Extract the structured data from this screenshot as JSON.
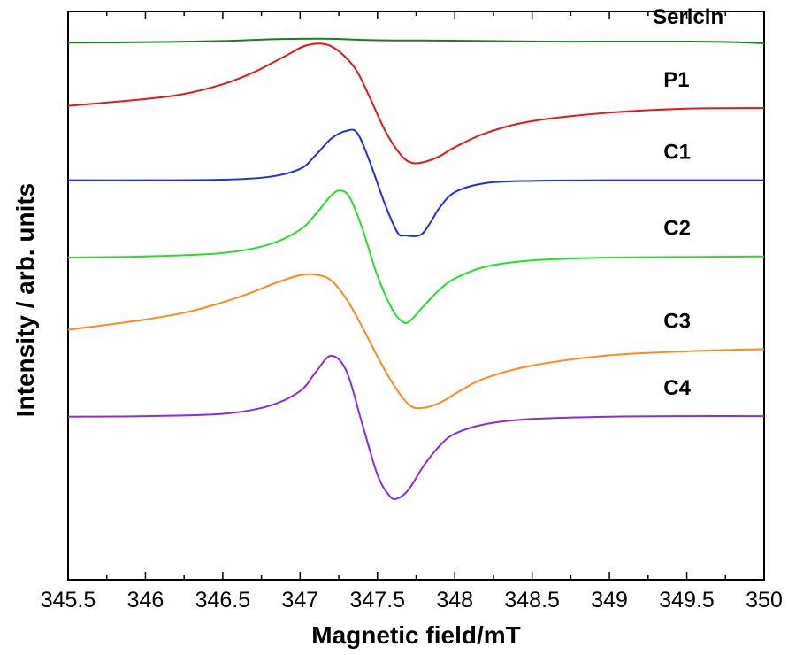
{
  "chart_data": {
    "type": "line",
    "title": "",
    "xlabel": "Magnetic field/mT",
    "ylabel": "Intensity / arb. units",
    "xlim": [
      345.5,
      350
    ],
    "ylim": [
      0,
      1
    ],
    "grid": false,
    "legend": "inline labels at right",
    "y_ticks_labeled": false,
    "x_ticks": [
      {
        "value": 345.5,
        "label": "345.5"
      },
      {
        "value": 346,
        "label": "346"
      },
      {
        "value": 346.5,
        "label": "346.5"
      },
      {
        "value": 347,
        "label": "347"
      },
      {
        "value": 347.5,
        "label": "347.5"
      },
      {
        "value": 348,
        "label": "348"
      },
      {
        "value": 348.5,
        "label": "348.5"
      },
      {
        "value": 349,
        "label": "349"
      },
      {
        "value": 349.5,
        "label": "349.5"
      },
      {
        "value": 350,
        "label": "350"
      }
    ],
    "series": [
      {
        "name": "Sericin",
        "color": "#1a7f1a",
        "x": [
          345.5,
          346.0,
          346.5,
          346.8,
          347.0,
          347.2,
          347.4,
          347.6,
          347.8,
          348.2,
          348.6,
          349.0,
          349.5,
          349.8,
          350.0
        ],
        "y": [
          0.945,
          0.946,
          0.948,
          0.951,
          0.952,
          0.952,
          0.95,
          0.949,
          0.949,
          0.948,
          0.947,
          0.947,
          0.947,
          0.946,
          0.944
        ]
      },
      {
        "name": "P1",
        "color": "#e8141c",
        "x": [
          345.5,
          346.0,
          346.25,
          346.5,
          346.7,
          346.9,
          347.05,
          347.2,
          347.35,
          347.45,
          347.55,
          347.65,
          347.72,
          347.8,
          347.9,
          348.0,
          348.2,
          348.5,
          349.0,
          349.5,
          350.0
        ],
        "y": [
          0.834,
          0.846,
          0.855,
          0.872,
          0.893,
          0.921,
          0.941,
          0.939,
          0.902,
          0.849,
          0.79,
          0.748,
          0.734,
          0.735,
          0.745,
          0.761,
          0.786,
          0.807,
          0.822,
          0.829,
          0.83
        ]
      },
      {
        "name": "C1",
        "color": "#1f2fe0",
        "x": [
          345.5,
          346.0,
          346.5,
          346.8,
          347.0,
          347.1,
          347.2,
          347.3,
          347.37,
          347.45,
          347.55,
          347.63,
          347.68,
          347.78,
          347.85,
          347.9,
          348.0,
          348.2,
          348.5,
          349.0,
          349.5,
          350.0
        ],
        "y": [
          0.703,
          0.703,
          0.704,
          0.709,
          0.723,
          0.747,
          0.776,
          0.79,
          0.786,
          0.736,
          0.66,
          0.611,
          0.606,
          0.607,
          0.632,
          0.654,
          0.682,
          0.698,
          0.702,
          0.703,
          0.703,
          0.703
        ]
      },
      {
        "name": "C2",
        "color": "#22e02a",
        "x": [
          345.5,
          346.0,
          346.5,
          346.8,
          347.0,
          347.1,
          347.2,
          347.26,
          347.32,
          347.4,
          347.5,
          347.6,
          347.67,
          347.72,
          347.8,
          347.9,
          348.0,
          348.2,
          348.5,
          349.0,
          349.5,
          350.0
        ],
        "y": [
          0.567,
          0.569,
          0.575,
          0.59,
          0.616,
          0.643,
          0.676,
          0.685,
          0.673,
          0.62,
          0.535,
          0.474,
          0.453,
          0.458,
          0.482,
          0.51,
          0.53,
          0.551,
          0.562,
          0.567,
          0.568,
          0.569
        ]
      },
      {
        "name": "C3",
        "color": "#ff8a1a",
        "x": [
          345.5,
          346.0,
          346.3,
          346.6,
          346.85,
          347.0,
          347.1,
          347.2,
          347.3,
          347.4,
          347.5,
          347.6,
          347.7,
          347.78,
          347.9,
          348.05,
          348.2,
          348.5,
          349.0,
          349.5,
          350.0
        ],
        "y": [
          0.44,
          0.458,
          0.473,
          0.497,
          0.523,
          0.536,
          0.537,
          0.527,
          0.494,
          0.446,
          0.393,
          0.345,
          0.309,
          0.302,
          0.311,
          0.335,
          0.355,
          0.377,
          0.395,
          0.402,
          0.406
        ]
      },
      {
        "name": "C4",
        "color": "#8a2be2",
        "x": [
          345.5,
          346.0,
          346.5,
          346.8,
          347.0,
          347.1,
          347.2,
          347.3,
          347.4,
          347.5,
          347.58,
          347.63,
          347.7,
          347.8,
          347.9,
          348.0,
          348.2,
          348.5,
          349.0,
          349.5,
          350.0
        ],
        "y": [
          0.287,
          0.288,
          0.292,
          0.306,
          0.332,
          0.365,
          0.394,
          0.367,
          0.276,
          0.185,
          0.147,
          0.143,
          0.158,
          0.201,
          0.235,
          0.257,
          0.274,
          0.283,
          0.287,
          0.288,
          0.288
        ]
      }
    ]
  }
}
